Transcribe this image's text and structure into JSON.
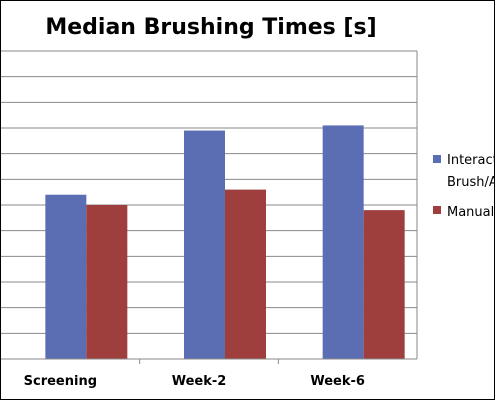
{
  "chart_data": {
    "type": "bar",
    "title": "Median Brushing Times [s]",
    "categories": [
      "Screening",
      "Week-2",
      "Week-6"
    ],
    "series": [
      {
        "name": "Interactive Brush/App",
        "values": [
          64,
          89,
          91
        ],
        "color": "#5B6DB3"
      },
      {
        "name": "Manual",
        "values": [
          60,
          66,
          58
        ],
        "color": "#9E3F3E"
      }
    ],
    "ylim": [
      0,
      120
    ],
    "grid": true,
    "legend_position": "right",
    "legend_labels_visible": [
      "Interact",
      "Brush/A",
      "Manual"
    ]
  }
}
